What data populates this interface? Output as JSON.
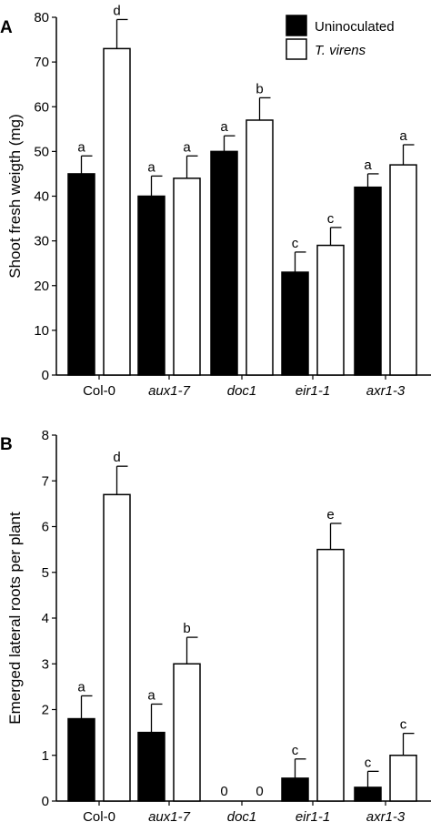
{
  "colors": {
    "uninoculated": "#000000",
    "t_virens": "#ffffff",
    "stroke": "#000000"
  },
  "legend": [
    {
      "label": "Uninoculated",
      "color": "#000000"
    },
    {
      "label": "T. virens",
      "color": "#ffffff",
      "italic": true
    }
  ],
  "legend_placement": "top-right",
  "chart_data": [
    {
      "type": "bar",
      "panel_label": "A",
      "ylabel": "Shoot fresh weigth (mg)",
      "ylim": [
        0,
        80
      ],
      "yticks": [
        0,
        10,
        20,
        30,
        40,
        50,
        60,
        70,
        80
      ],
      "categories": [
        "Col-0",
        "aux1-7",
        "doc1",
        "eir1-1",
        "axr1-3"
      ],
      "italic_categories": [
        false,
        true,
        true,
        true,
        true
      ],
      "series": [
        {
          "name": "Uninoculated",
          "values": [
            45,
            40,
            50,
            23,
            42
          ],
          "errors": [
            4,
            4.5,
            3.5,
            4.5,
            3
          ]
        },
        {
          "name": "T. virens",
          "values": [
            73,
            44,
            57,
            29,
            47
          ],
          "errors": [
            6.5,
            5,
            5,
            4,
            4.5
          ]
        }
      ],
      "annotations": [
        [
          "a",
          "d"
        ],
        [
          "a",
          "a"
        ],
        [
          "a",
          "b"
        ],
        [
          "c",
          "c"
        ],
        [
          "a",
          "a"
        ]
      ],
      "grid": false
    },
    {
      "type": "bar",
      "panel_label": "B",
      "ylabel": "Emerged lateral roots per plant",
      "ylim": [
        0,
        8
      ],
      "yticks": [
        0,
        1,
        2,
        3,
        4,
        5,
        6,
        7,
        8
      ],
      "categories": [
        "Col-0",
        "aux1-7",
        "doc1",
        "eir1-1",
        "axr1-3"
      ],
      "italic_categories": [
        false,
        true,
        true,
        true,
        true
      ],
      "series": [
        {
          "name": "Uninoculated",
          "values": [
            1.8,
            1.5,
            0,
            0.5,
            0.3
          ],
          "errors": [
            0.5,
            0.62,
            0,
            0.42,
            0.35
          ]
        },
        {
          "name": "T. virens",
          "values": [
            6.7,
            3.0,
            0,
            5.5,
            1.0
          ],
          "errors": [
            0.62,
            0.58,
            0,
            0.57,
            0.48
          ]
        }
      ],
      "annotations": [
        [
          "a",
          "d"
        ],
        [
          "a",
          "b"
        ],
        [
          "0",
          "0"
        ],
        [
          "c",
          "e"
        ],
        [
          "c",
          "c"
        ]
      ],
      "grid": false
    }
  ]
}
